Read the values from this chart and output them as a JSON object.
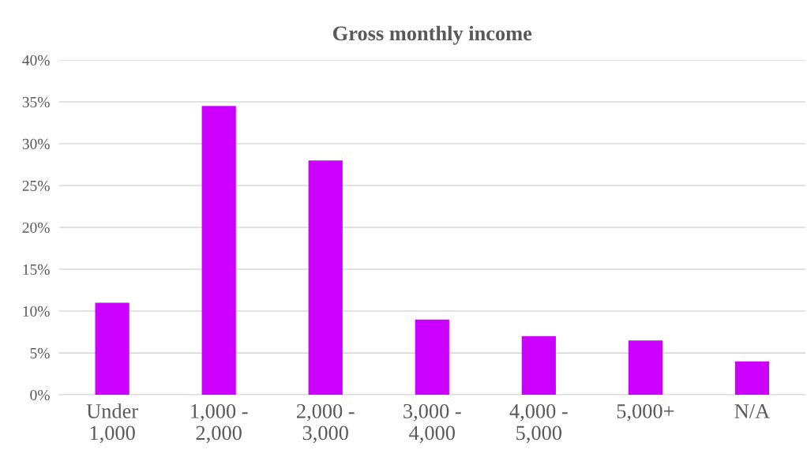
{
  "chart_data": {
    "type": "bar",
    "title": "Gross monthly income",
    "categories": [
      "Under\n1,000",
      "1,000 -\n2,000",
      "2,000 -\n3,000",
      "3,000 -\n4,000",
      "4,000 -\n5,000",
      "5,000+",
      "N/A"
    ],
    "values": [
      11,
      34.5,
      28,
      9,
      7,
      6.5,
      4
    ],
    "color": "#cc00ff",
    "ylim": [
      0,
      40
    ],
    "yticks": [
      {
        "value": 0,
        "label": "0%"
      },
      {
        "value": 5,
        "label": "5%"
      },
      {
        "value": 10,
        "label": "10%"
      },
      {
        "value": 15,
        "label": "15%"
      },
      {
        "value": 20,
        "label": "20%"
      },
      {
        "value": 25,
        "label": "25%"
      },
      {
        "value": 30,
        "label": "30%"
      },
      {
        "value": 35,
        "label": "35%"
      },
      {
        "value": 40,
        "label": "40%"
      }
    ],
    "grid": "y",
    "legend": false
  }
}
